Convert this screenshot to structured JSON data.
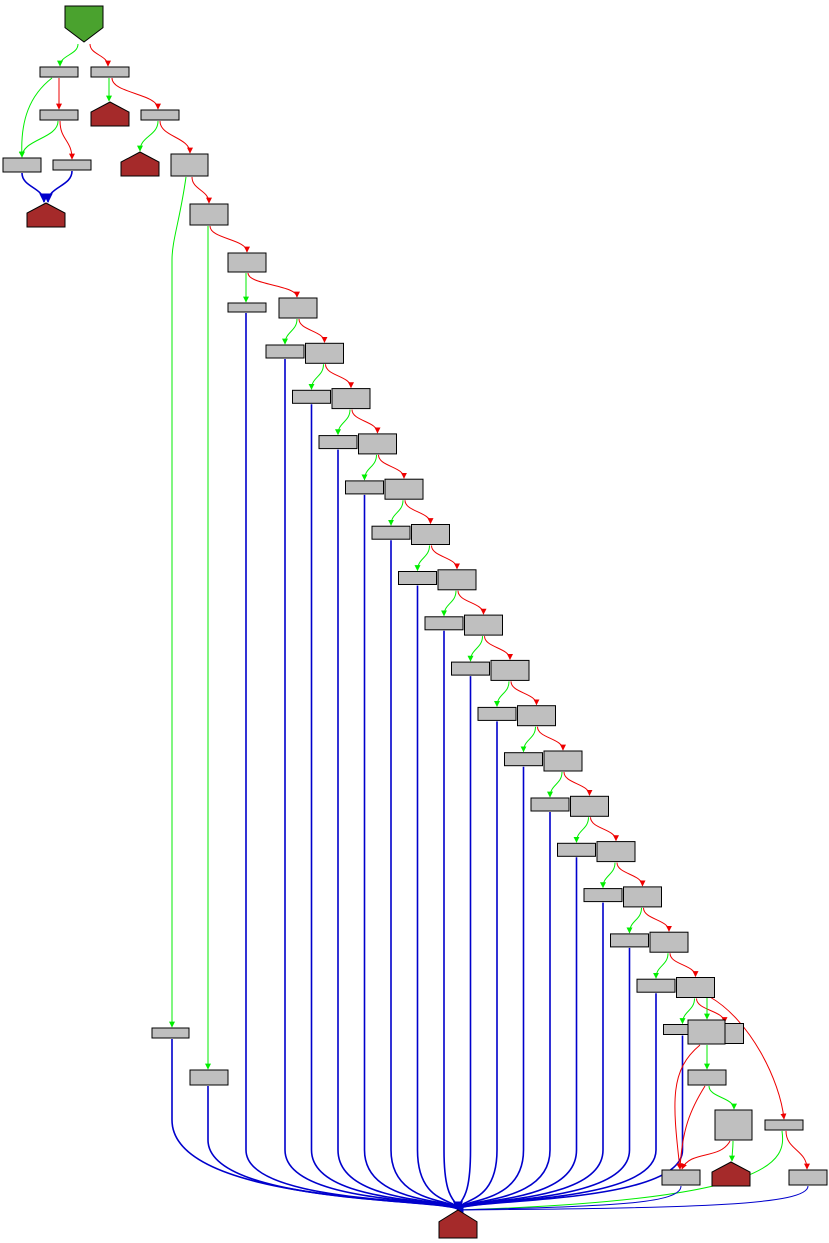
{
  "graph": {
    "type": "control-flow-graph",
    "colors": {
      "block_fill": "#bfbfbf",
      "block_stroke": "#000000",
      "entry_fill": "#4aa22e",
      "exit_fill": "#a52a2a",
      "edge_true": "#00ee00",
      "edge_false": "#ee0000",
      "edge_return": "#0000cc"
    },
    "entry_node": "entry-node",
    "exit_nodes": [
      "exit-node-a",
      "exit-node-b",
      "exit-node-c",
      "exit-node-d",
      "exit-node-e",
      "exit-node-f"
    ],
    "branch_chain_length": 20
  }
}
